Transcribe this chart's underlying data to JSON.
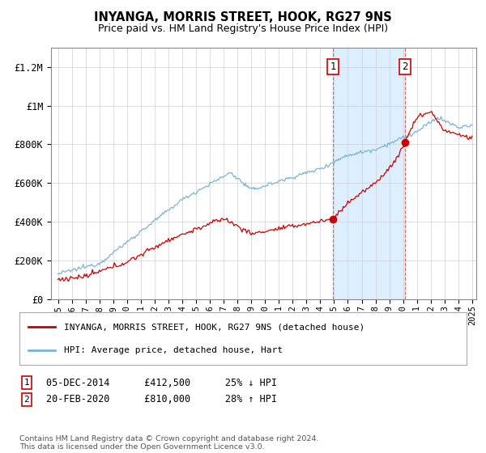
{
  "title": "INYANGA, MORRIS STREET, HOOK, RG27 9NS",
  "subtitle": "Price paid vs. HM Land Registry's House Price Index (HPI)",
  "ylim": [
    0,
    1300000
  ],
  "yticks": [
    0,
    200000,
    400000,
    600000,
    800000,
    1000000,
    1200000
  ],
  "ytick_labels": [
    "£0",
    "£200K",
    "£400K",
    "£600K",
    "£800K",
    "£1M",
    "£1.2M"
  ],
  "hpi_color": "#7ab3d4",
  "price_color": "#cc0000",
  "shaded_color": "#ddeeff",
  "marker1_x": 2014.92,
  "marker1_y": 412500,
  "marker2_x": 2020.13,
  "marker2_y": 810000,
  "vline1_x": 2014.92,
  "vline2_x": 2020.13,
  "legend_label1": "INYANGA, MORRIS STREET, HOOK, RG27 9NS (detached house)",
  "legend_label2": "HPI: Average price, detached house, Hart",
  "annotation1_text": "05-DEC-2014      £412,500      25% ↓ HPI",
  "annotation2_text": "20-FEB-2020      £810,000      28% ↑ HPI",
  "footer": "Contains HM Land Registry data © Crown copyright and database right 2024.\nThis data is licensed under the Open Government Licence v3.0.",
  "background_color": "#ffffff",
  "xlim_min": 1994.5,
  "xlim_max": 2025.3
}
